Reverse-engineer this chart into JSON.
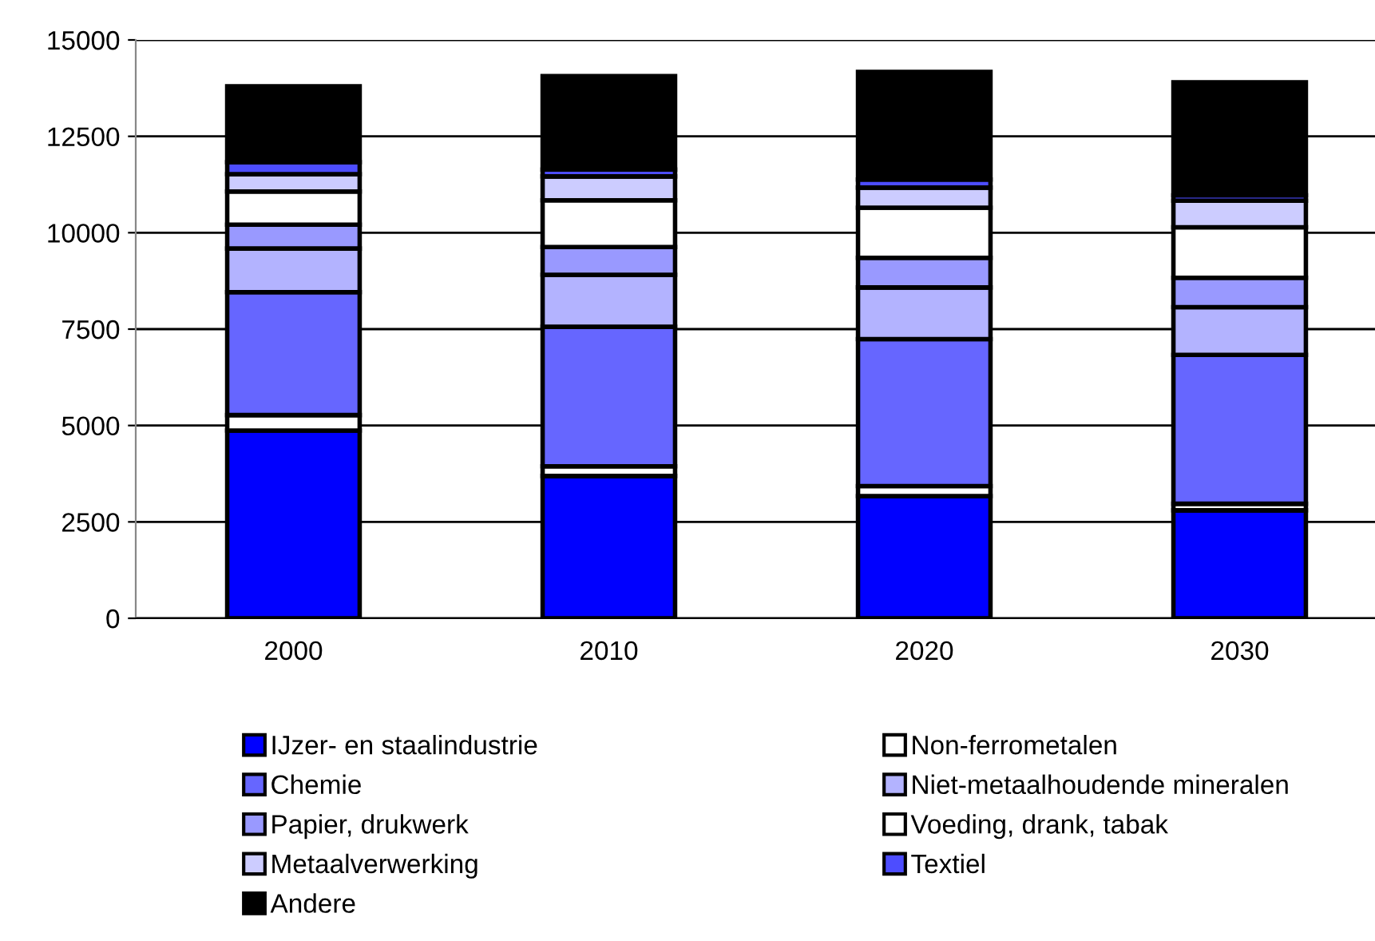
{
  "chart_data": {
    "type": "bar",
    "stacked": true,
    "categories": [
      "2000",
      "2010",
      "2020",
      "2030"
    ],
    "series": [
      {
        "name": "IJzer- en staalindustrie",
        "color": "#0000ff",
        "values": [
          4870,
          3690,
          3170,
          2800
        ]
      },
      {
        "name": "Non-ferrometalen",
        "color": "#ffffff",
        "values": [
          400,
          250,
          260,
          170
        ]
      },
      {
        "name": "Chemie",
        "color": "#6666ff",
        "values": [
          3190,
          3620,
          3810,
          3860
        ]
      },
      {
        "name": "Niet-metaalhoudende mineralen",
        "color": "#b3b3ff",
        "values": [
          1130,
          1350,
          1340,
          1240
        ]
      },
      {
        "name": "Papier, drukwerk",
        "color": "#9999ff",
        "values": [
          620,
          720,
          770,
          760
        ]
      },
      {
        "name": "Voeding, drank, tabak",
        "color": "#ffffff",
        "values": [
          860,
          1210,
          1300,
          1310
        ]
      },
      {
        "name": "Metaalverwerking",
        "color": "#ccccff",
        "values": [
          450,
          620,
          520,
          690
        ]
      },
      {
        "name": "Textiel",
        "color": "#4d4dff",
        "values": [
          310,
          180,
          210,
          140
        ]
      },
      {
        "name": "Andere",
        "color": "#000000",
        "values": [
          1970,
          2420,
          2790,
          2930
        ]
      }
    ],
    "ylim": [
      0,
      15000
    ],
    "yticks": [
      0,
      2500,
      5000,
      7500,
      10000,
      12500,
      15000
    ],
    "grid": "y",
    "legend": "bottom"
  }
}
